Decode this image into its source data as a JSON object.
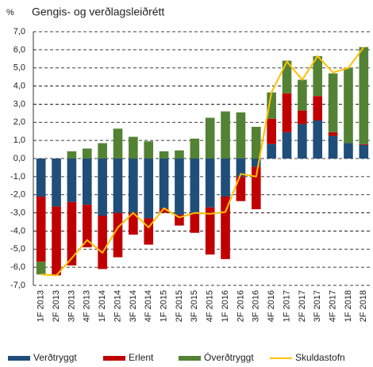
{
  "chart_data": {
    "type": "bar",
    "stacked": true,
    "title": "Gengis- og verðlagsleiðrétt",
    "y_label": "%",
    "categories": [
      "1F 2013",
      "2F 2013",
      "3F 2013",
      "4F 2013",
      "1F 2014",
      "2F 2014",
      "3F 2014",
      "4F 2014",
      "1F 2015",
      "2F 2015",
      "3F 2015",
      "4F 2015",
      "1F 2016",
      "2F 2016",
      "3F 2016",
      "4F 2016",
      "1F 2017",
      "2F 2017",
      "3F 2017",
      "4F 2017",
      "1F 2018",
      "2F 2018"
    ],
    "series": [
      {
        "name": "Verðtryggt",
        "color": "#1f4e79",
        "type": "bar",
        "values": [
          -2.1,
          -2.65,
          -2.4,
          -2.55,
          -3.15,
          -3.0,
          -3.0,
          -3.3,
          -2.75,
          -3.1,
          -3.0,
          -2.7,
          -2.1,
          -1.0,
          -0.45,
          0.8,
          1.45,
          1.9,
          2.1,
          1.25,
          0.85,
          0.75
        ]
      },
      {
        "name": "Erlent",
        "color": "#c00000",
        "type": "bar",
        "values": [
          -3.6,
          -3.8,
          -3.5,
          -2.35,
          -2.95,
          -2.45,
          -1.2,
          -1.45,
          -0.25,
          -0.6,
          -1.1,
          -2.6,
          -3.45,
          -1.35,
          -2.35,
          1.4,
          2.15,
          0.75,
          1.35,
          0.2,
          0,
          0.05
        ]
      },
      {
        "name": "Óverðtryggt",
        "color": "#548235",
        "type": "bar",
        "values": [
          -0.7,
          0,
          0.4,
          0.55,
          0.85,
          1.65,
          1.2,
          0.95,
          0.4,
          0.45,
          1.1,
          2.25,
          2.6,
          2.55,
          1.75,
          1.45,
          1.8,
          1.7,
          2.2,
          3.25,
          4.15,
          5.35
        ]
      },
      {
        "name": "Skuldastofn",
        "color": "#ffc000",
        "type": "line",
        "values": [
          -6.4,
          -6.45,
          -5.5,
          -4.5,
          -5.2,
          -3.8,
          -3.0,
          -3.8,
          -2.75,
          -3.25,
          -3.0,
          -3.05,
          -2.95,
          -0.85,
          -1.0,
          3.65,
          5.35,
          4.35,
          5.65,
          4.75,
          5.0,
          6.15
        ]
      }
    ],
    "ylim": [
      -7,
      7
    ],
    "yticks": [
      {
        "value": -7,
        "label": "-7,0"
      },
      {
        "value": -6,
        "label": "-6,0"
      },
      {
        "value": -5,
        "label": "-5,0"
      },
      {
        "value": -4,
        "label": "-4,0"
      },
      {
        "value": -3,
        "label": "-3,0"
      },
      {
        "value": -2,
        "label": "-2,0"
      },
      {
        "value": -1,
        "label": "-1,0"
      },
      {
        "value": 0,
        "label": "0,0"
      },
      {
        "value": 1,
        "label": "1,0"
      },
      {
        "value": 2,
        "label": "2,0"
      },
      {
        "value": 3,
        "label": "3,0"
      },
      {
        "value": 4,
        "label": "4,0"
      },
      {
        "value": 5,
        "label": "5,0"
      },
      {
        "value": 6,
        "label": "6,0"
      },
      {
        "value": 7,
        "label": "7,0"
      }
    ],
    "grid": true,
    "legend": "bottom"
  }
}
